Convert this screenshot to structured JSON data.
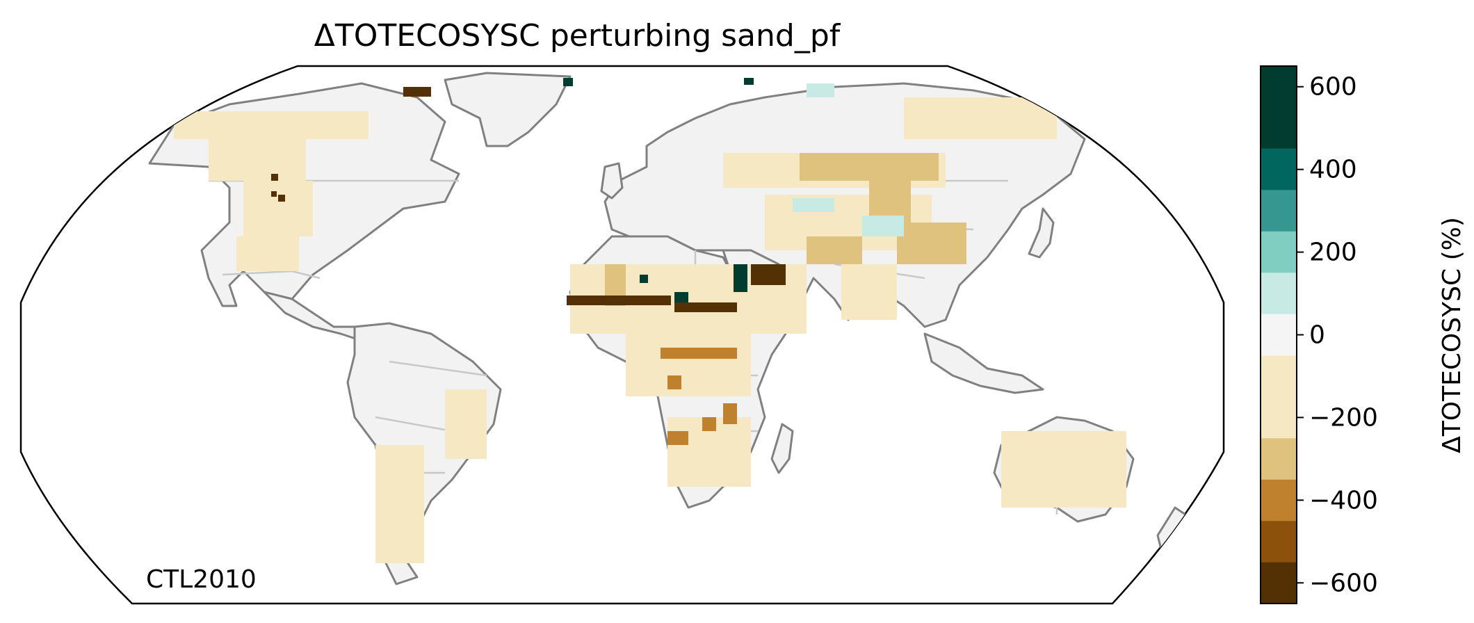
{
  "title": "ΔTOTECOSYSC perturbing sand_pf",
  "panel_label": "CTL2010",
  "colorbar": {
    "label": "ΔTOTECOSYSC (%)",
    "tick_labels": [
      "600",
      "400",
      "200",
      "0",
      "−200",
      "−400",
      "−600"
    ],
    "tick_values": [
      600,
      400,
      200,
      0,
      -200,
      -400,
      -600
    ],
    "range": [
      -650,
      650
    ],
    "bins": [
      {
        "lo": -650,
        "hi": -550,
        "color": "#543005"
      },
      {
        "lo": -550,
        "hi": -450,
        "color": "#8c510a"
      },
      {
        "lo": -450,
        "hi": -350,
        "color": "#bf812d"
      },
      {
        "lo": -350,
        "hi": -250,
        "color": "#dfc27d"
      },
      {
        "lo": -250,
        "hi": -50,
        "color": "#f6e8c3"
      },
      {
        "lo": -50,
        "hi": 50,
        "color": "#f5f5f5"
      },
      {
        "lo": 50,
        "hi": 150,
        "color": "#c7eae5"
      },
      {
        "lo": 150,
        "hi": 250,
        "color": "#80cdc1"
      },
      {
        "lo": 250,
        "hi": 350,
        "color": "#35978f"
      },
      {
        "lo": 350,
        "hi": 450,
        "color": "#01665e"
      },
      {
        "lo": 450,
        "hi": 650,
        "color": "#003c30"
      }
    ]
  },
  "map": {
    "projection": "Robinson",
    "coastline_color": "#808080",
    "border_color": "#c8c8c8",
    "ocean_color": "#ffffff"
  }
}
